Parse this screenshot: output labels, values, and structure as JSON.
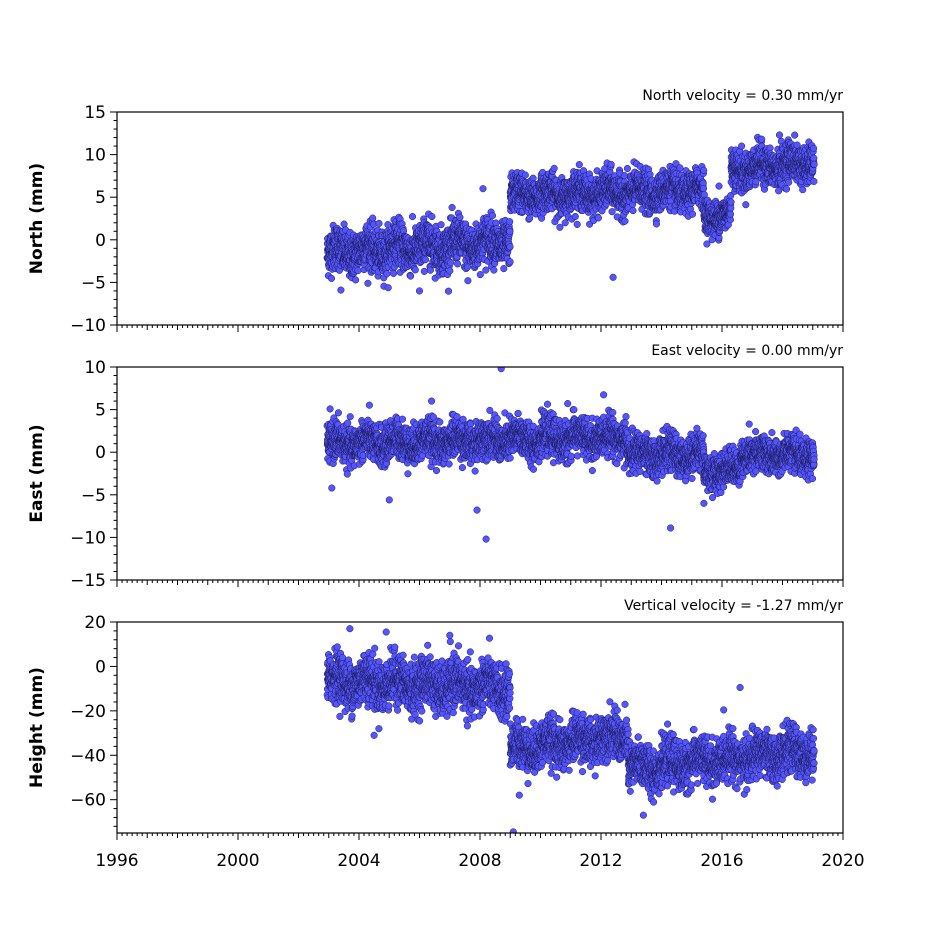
{
  "chart_data": {
    "type": "scatter",
    "xlim": [
      1996,
      2020
    ],
    "x_major_ticks": [
      1996,
      2000,
      2004,
      2008,
      2012,
      2016,
      2020
    ],
    "x_tick_labels": [
      "1996",
      "2000",
      "2004",
      "2008",
      "2012",
      "2016",
      "2020"
    ],
    "marker_color": "#5555ff",
    "marker_edge_color": "#1a1a55",
    "panels": [
      {
        "id": "north",
        "ylabel": "North (mm)",
        "velocity_label": "North velocity = 0.30 mm/yr",
        "ylim": [
          -10,
          15
        ],
        "y_ticks": [
          -10,
          -5,
          0,
          5,
          10,
          15
        ],
        "y_tick_labels": [
          "−10",
          "−5",
          "0",
          "5",
          "10",
          "15"
        ],
        "segments": [
          {
            "t0": 2002.95,
            "t1": 2009.0,
            "v0": -1.5,
            "v1": -0.2,
            "noise": 1.3
          },
          {
            "t0": 2009.0,
            "t1": 2015.4,
            "v0": 5.2,
            "v1": 5.8,
            "noise": 1.1
          },
          {
            "t0": 2015.4,
            "t1": 2016.3,
            "v0": 2.8,
            "v1": 3.0,
            "noise": 1.0
          },
          {
            "t0": 2016.3,
            "t1": 2019.05,
            "v0": 8.2,
            "v1": 9.2,
            "noise": 1.1
          }
        ],
        "outliers": [
          [
            2003.4,
            -5.9
          ],
          [
            2006.0,
            -6.0
          ],
          [
            2007.6,
            -4.8
          ],
          [
            2012.4,
            -4.4
          ],
          [
            2008.1,
            6.0
          ],
          [
            2015.9,
            6.3
          ],
          [
            2017.9,
            12.3
          ]
        ]
      },
      {
        "id": "east",
        "ylabel": "East (mm)",
        "velocity_label": "East velocity = 0.00 mm/yr",
        "ylim": [
          -15,
          10
        ],
        "y_ticks": [
          -15,
          -10,
          -5,
          0,
          5,
          10
        ],
        "y_tick_labels": [
          "−15",
          "−10",
          "−5",
          "0",
          "5",
          "10"
        ],
        "segments": [
          {
            "t0": 2002.95,
            "t1": 2012.9,
            "v0": 1.0,
            "v1": 1.8,
            "noise": 1.1
          },
          {
            "t0": 2012.9,
            "t1": 2015.4,
            "v0": -0.3,
            "v1": -0.3,
            "noise": 1.1
          },
          {
            "t0": 2015.4,
            "t1": 2016.6,
            "v0": -2.2,
            "v1": -2.0,
            "noise": 1.0
          },
          {
            "t0": 2016.6,
            "t1": 2019.05,
            "v0": -0.2,
            "v1": -0.5,
            "noise": 1.0
          }
        ],
        "outliers": [
          [
            2008.2,
            -10.2
          ],
          [
            2007.9,
            -6.8
          ],
          [
            2014.3,
            -8.9
          ],
          [
            2005.0,
            -5.6
          ],
          [
            2003.1,
            -4.2
          ],
          [
            2008.7,
            9.8
          ],
          [
            2006.4,
            6.0
          ],
          [
            2010.9,
            5.7
          ],
          [
            2015.4,
            -6.0
          ],
          [
            2016.9,
            3.3
          ]
        ]
      },
      {
        "id": "height",
        "ylabel": "Height (mm)",
        "velocity_label": "Vertical velocity = -1.27 mm/yr",
        "ylim": [
          -75,
          20
        ],
        "y_ticks": [
          -60,
          -40,
          -20,
          0,
          20
        ],
        "y_tick_labels": [
          "−60",
          "−40",
          "−20",
          "0",
          "20"
        ],
        "segments": [
          {
            "t0": 2002.95,
            "t1": 2009.0,
            "v0": -6.0,
            "v1": -10.0,
            "noise": 5.5
          },
          {
            "t0": 2009.0,
            "t1": 2012.9,
            "v0": -37.0,
            "v1": -31.0,
            "noise": 5.0
          },
          {
            "t0": 2012.9,
            "t1": 2019.05,
            "v0": -46.0,
            "v1": -38.0,
            "noise": 5.0
          }
        ],
        "outliers": [
          [
            2003.7,
            17.0
          ],
          [
            2004.9,
            15.5
          ],
          [
            2007.0,
            14.0
          ],
          [
            2016.6,
            -9.5
          ],
          [
            2009.3,
            -58.0
          ],
          [
            2009.1,
            -74.5
          ],
          [
            2013.4,
            -67.0
          ],
          [
            2004.5,
            -31.0
          ]
        ]
      }
    ]
  }
}
